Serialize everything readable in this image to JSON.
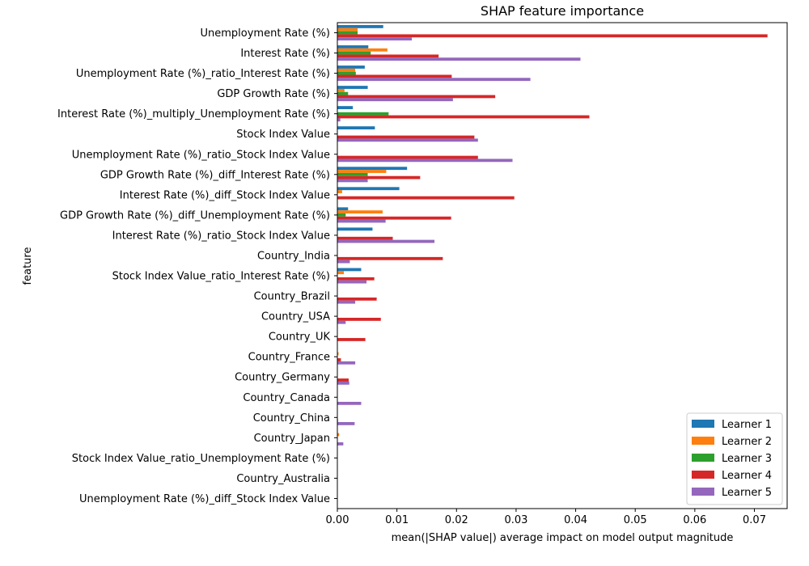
{
  "chart_data": {
    "type": "bar",
    "orientation": "horizontal",
    "title": "SHAP feature importance",
    "xlabel": "mean(|SHAP value|) average impact on model output magnitude",
    "ylabel": "feature",
    "xlim": [
      0,
      0.0755
    ],
    "xticks": [
      "0.00",
      "0.01",
      "0.02",
      "0.03",
      "0.04",
      "0.05",
      "0.06",
      "0.07"
    ],
    "grid": false,
    "legend_position": "lower-right",
    "categories": [
      "Unemployment Rate (%)",
      "Interest Rate (%)",
      "Unemployment Rate (%)_ratio_Interest Rate (%)",
      "GDP Growth Rate (%)",
      "Interest Rate (%)_multiply_Unemployment Rate (%)",
      "Stock Index Value",
      "Unemployment Rate (%)_ratio_Stock Index Value",
      "GDP Growth Rate (%)_diff_Interest Rate (%)",
      "Interest Rate (%)_diff_Stock Index Value",
      "GDP Growth Rate (%)_diff_Unemployment Rate (%)",
      "Interest Rate (%)_ratio_Stock Index Value",
      "Country_India",
      "Stock Index Value_ratio_Interest Rate (%)",
      "Country_Brazil",
      "Country_USA",
      "Country_UK",
      "Country_France",
      "Country_Germany",
      "Country_Canada",
      "Country_China",
      "Country_Japan",
      "Stock Index Value_ratio_Unemployment Rate (%)",
      "Country_Australia",
      "Unemployment Rate (%)_diff_Stock Index Value"
    ],
    "series": [
      {
        "name": "Learner 1",
        "color": "#1f77b4",
        "values": [
          0.0077,
          0.0052,
          0.0046,
          0.0051,
          0.0026,
          0.0063,
          0.0,
          0.0117,
          0.0104,
          0.0018,
          0.0059,
          0.0,
          0.004,
          0.0,
          0.0,
          0.0,
          0.0,
          0.0,
          0.0,
          0.0,
          0.0,
          0.0,
          0.0,
          0.0
        ]
      },
      {
        "name": "Learner 2",
        "color": "#ff7f0e",
        "values": [
          0.0034,
          0.0084,
          0.003,
          0.0012,
          0.0,
          0.0,
          0.0,
          0.0082,
          0.0008,
          0.0076,
          0.0,
          0.0,
          0.0011,
          0.0,
          0.0,
          0.0,
          0.0002,
          0.0,
          0.0,
          0.0,
          0.0003,
          0.0,
          0.0,
          0.0
        ]
      },
      {
        "name": "Learner 3",
        "color": "#2ca02c",
        "values": [
          0.0034,
          0.0056,
          0.0031,
          0.0018,
          0.0086,
          0.0,
          0.0,
          0.0051,
          0.0,
          0.0014,
          0.0,
          0.0,
          0.0,
          0.0,
          0.0,
          0.0,
          0.0,
          0.0,
          0.0,
          0.0,
          0.0,
          0.0,
          0.0,
          0.0
        ]
      },
      {
        "name": "Learner 4",
        "color": "#d62728",
        "values": [
          0.0722,
          0.017,
          0.0192,
          0.0265,
          0.0423,
          0.023,
          0.0236,
          0.0139,
          0.0297,
          0.0191,
          0.0093,
          0.0177,
          0.0062,
          0.0066,
          0.0073,
          0.0047,
          0.0006,
          0.0019,
          0.0,
          0.0001,
          0.0,
          0.0,
          0.0,
          0.0
        ]
      },
      {
        "name": "Learner 5",
        "color": "#9467bd",
        "values": [
          0.0125,
          0.0408,
          0.0324,
          0.0194,
          0.0005,
          0.0236,
          0.0294,
          0.0051,
          0.0,
          0.0081,
          0.0163,
          0.0021,
          0.0049,
          0.003,
          0.0014,
          0.0,
          0.003,
          0.002,
          0.004,
          0.0029,
          0.001,
          0.0,
          0.0,
          0.0
        ]
      }
    ]
  }
}
